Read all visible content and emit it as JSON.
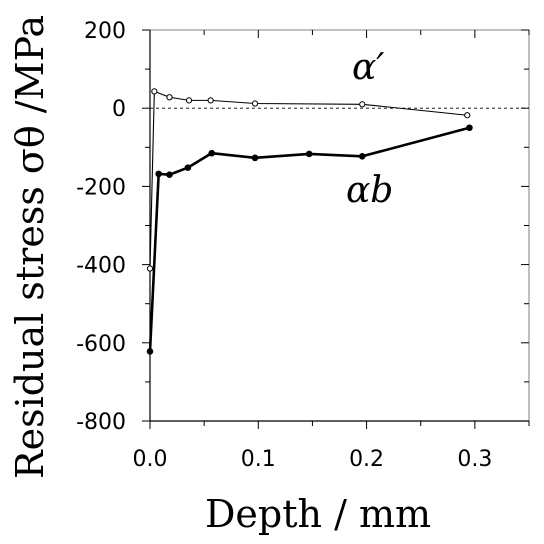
{
  "chart_data": {
    "type": "line",
    "xlabel": "Depth / mm",
    "ylabel": "Residual stress σθ /MPa",
    "xlim": [
      0,
      0.35
    ],
    "ylim": [
      -800,
      200
    ],
    "x_ticks": [
      "0.0",
      "0.1",
      "0.2",
      "0.3"
    ],
    "y_ticks": [
      "200",
      "0",
      "-200",
      "-400",
      "-600",
      "-800"
    ],
    "reference_line": {
      "y": 0,
      "style": "dashed"
    },
    "grid": false,
    "series": [
      {
        "name": "α′",
        "marker": "open-circle",
        "line": "thin",
        "points": [
          [
            0.0,
            -410
          ],
          [
            0.004,
            43
          ],
          [
            0.018,
            28
          ],
          [
            0.036,
            20
          ],
          [
            0.056,
            20
          ],
          [
            0.097,
            12
          ],
          [
            0.196,
            10
          ],
          [
            0.293,
            -18
          ]
        ]
      },
      {
        "name": "αb",
        "marker": "filled-circle",
        "line": "thick",
        "points": [
          [
            0.0,
            -622
          ],
          [
            0.008,
            -168
          ],
          [
            0.018,
            -170
          ],
          [
            0.035,
            -152
          ],
          [
            0.057,
            -115
          ],
          [
            0.097,
            -127
          ],
          [
            0.147,
            -117
          ],
          [
            0.196,
            -123
          ],
          [
            0.295,
            -50
          ]
        ]
      }
    ]
  }
}
